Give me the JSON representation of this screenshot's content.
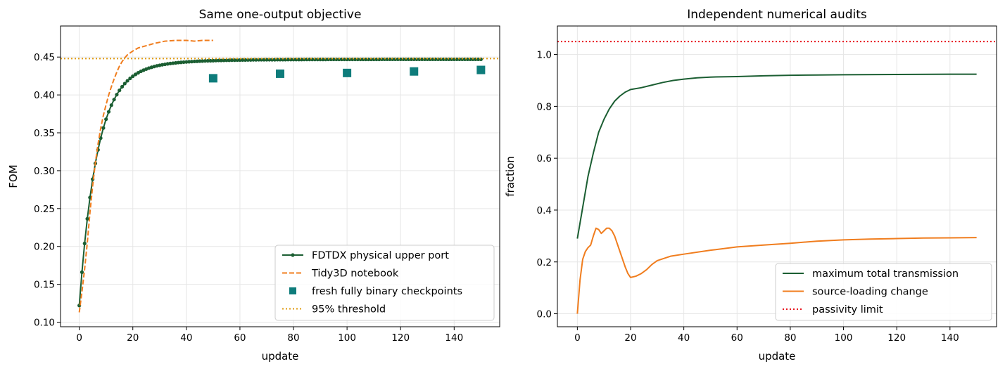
{
  "chart_data": [
    {
      "type": "line",
      "title": "Same one-output objective",
      "xlabel": "update",
      "ylabel": "FOM",
      "xlim": [
        -7,
        157
      ],
      "ylim": [
        0.094,
        0.491
      ],
      "xticks": [
        0,
        20,
        40,
        60,
        80,
        100,
        120,
        140
      ],
      "yticks": [
        0.1,
        0.15,
        0.2,
        0.25,
        0.3,
        0.35,
        0.4,
        0.45
      ],
      "ytick_labels": [
        "0.10",
        "0.15",
        "0.20",
        "0.25",
        "0.30",
        "0.35",
        "0.40",
        "0.45"
      ],
      "grid": true,
      "legend_position": "lower-right",
      "series": [
        {
          "name": "FDTDX physical upper port",
          "kind": "line-with-markers",
          "color": "#1b5e32",
          "model": {
            "start": 0.122,
            "plateau": 0.447,
            "x0": 0,
            "x1": 150,
            "step": 1,
            "tau": 6.5,
            "tail_tau": 18,
            "tail_frac": 0.08
          }
        },
        {
          "name": "Tidy3D notebook",
          "kind": "dashed-line",
          "color": "#f07d1e",
          "points": [
            [
              0,
              0.113
            ],
            [
              1,
              0.14
            ],
            [
              2,
              0.17
            ],
            [
              3,
              0.205
            ],
            [
              4,
              0.245
            ],
            [
              5,
              0.28
            ],
            [
              6,
              0.31
            ],
            [
              7,
              0.335
            ],
            [
              8,
              0.356
            ],
            [
              9,
              0.373
            ],
            [
              10,
              0.387
            ],
            [
              11,
              0.4
            ],
            [
              12,
              0.411
            ],
            [
              13,
              0.421
            ],
            [
              14,
              0.43
            ],
            [
              15,
              0.438
            ],
            [
              16,
              0.444
            ],
            [
              17,
              0.449
            ],
            [
              18,
              0.453
            ],
            [
              20,
              0.458
            ],
            [
              22,
              0.462
            ],
            [
              25,
              0.465
            ],
            [
              28,
              0.468
            ],
            [
              32,
              0.471
            ],
            [
              36,
              0.472
            ],
            [
              40,
              0.472
            ],
            [
              43,
              0.471
            ],
            [
              46,
              0.472
            ],
            [
              50,
              0.472
            ]
          ]
        },
        {
          "name": "fresh fully binary checkpoints",
          "kind": "square-markers",
          "color": "#0e7c7b",
          "points": [
            [
              50,
              0.422
            ],
            [
              75,
              0.428
            ],
            [
              100,
              0.429
            ],
            [
              125,
              0.431
            ],
            [
              150,
              0.433
            ]
          ]
        },
        {
          "name": "95% threshold",
          "kind": "dotted-hline",
          "color": "#e09b10",
          "y": 0.448
        }
      ]
    },
    {
      "type": "line",
      "title": "Independent numerical audits",
      "xlabel": "update",
      "ylabel": "fraction",
      "xlim": [
        -7.5,
        157.5
      ],
      "ylim": [
        -0.05,
        1.11
      ],
      "xticks": [
        0,
        20,
        40,
        60,
        80,
        100,
        120,
        140
      ],
      "yticks": [
        0.0,
        0.2,
        0.4,
        0.6,
        0.8,
        1.0
      ],
      "ytick_labels": [
        "0.0",
        "0.2",
        "0.4",
        "0.6",
        "0.8",
        "1.0"
      ],
      "grid": true,
      "legend_position": "lower-right",
      "series": [
        {
          "name": "maximum total transmission",
          "kind": "line",
          "color": "#1b5e32",
          "points": [
            [
              0,
              0.29
            ],
            [
              2,
              0.41
            ],
            [
              4,
              0.53
            ],
            [
              6,
              0.62
            ],
            [
              8,
              0.7
            ],
            [
              10,
              0.75
            ],
            [
              12,
              0.79
            ],
            [
              14,
              0.82
            ],
            [
              16,
              0.84
            ],
            [
              18,
              0.855
            ],
            [
              20,
              0.865
            ],
            [
              24,
              0.872
            ],
            [
              28,
              0.882
            ],
            [
              32,
              0.892
            ],
            [
              36,
              0.9
            ],
            [
              40,
              0.905
            ],
            [
              45,
              0.91
            ],
            [
              50,
              0.913
            ],
            [
              60,
              0.915
            ],
            [
              70,
              0.918
            ],
            [
              80,
              0.92
            ],
            [
              90,
              0.921
            ],
            [
              100,
              0.922
            ],
            [
              120,
              0.923
            ],
            [
              140,
              0.924
            ],
            [
              150,
              0.924
            ]
          ]
        },
        {
          "name": "source-loading change",
          "kind": "line",
          "color": "#f07d1e",
          "points": [
            [
              0,
              0.0
            ],
            [
              1,
              0.13
            ],
            [
              2,
              0.21
            ],
            [
              3,
              0.24
            ],
            [
              4,
              0.255
            ],
            [
              5,
              0.265
            ],
            [
              6,
              0.3
            ],
            [
              7,
              0.33
            ],
            [
              8,
              0.325
            ],
            [
              9,
              0.31
            ],
            [
              10,
              0.32
            ],
            [
              11,
              0.33
            ],
            [
              12,
              0.33
            ],
            [
              13,
              0.32
            ],
            [
              14,
              0.3
            ],
            [
              15,
              0.27
            ],
            [
              16,
              0.24
            ],
            [
              17,
              0.21
            ],
            [
              18,
              0.18
            ],
            [
              19,
              0.155
            ],
            [
              20,
              0.14
            ],
            [
              22,
              0.145
            ],
            [
              24,
              0.155
            ],
            [
              26,
              0.17
            ],
            [
              28,
              0.19
            ],
            [
              30,
              0.205
            ],
            [
              35,
              0.222
            ],
            [
              40,
              0.23
            ],
            [
              50,
              0.245
            ],
            [
              60,
              0.258
            ],
            [
              70,
              0.265
            ],
            [
              80,
              0.272
            ],
            [
              90,
              0.28
            ],
            [
              100,
              0.285
            ],
            [
              110,
              0.288
            ],
            [
              120,
              0.29
            ],
            [
              130,
              0.292
            ],
            [
              140,
              0.293
            ],
            [
              150,
              0.294
            ]
          ]
        },
        {
          "name": "passivity limit",
          "kind": "dotted-hline",
          "color": "#e8141e",
          "y": 1.05
        }
      ]
    }
  ]
}
